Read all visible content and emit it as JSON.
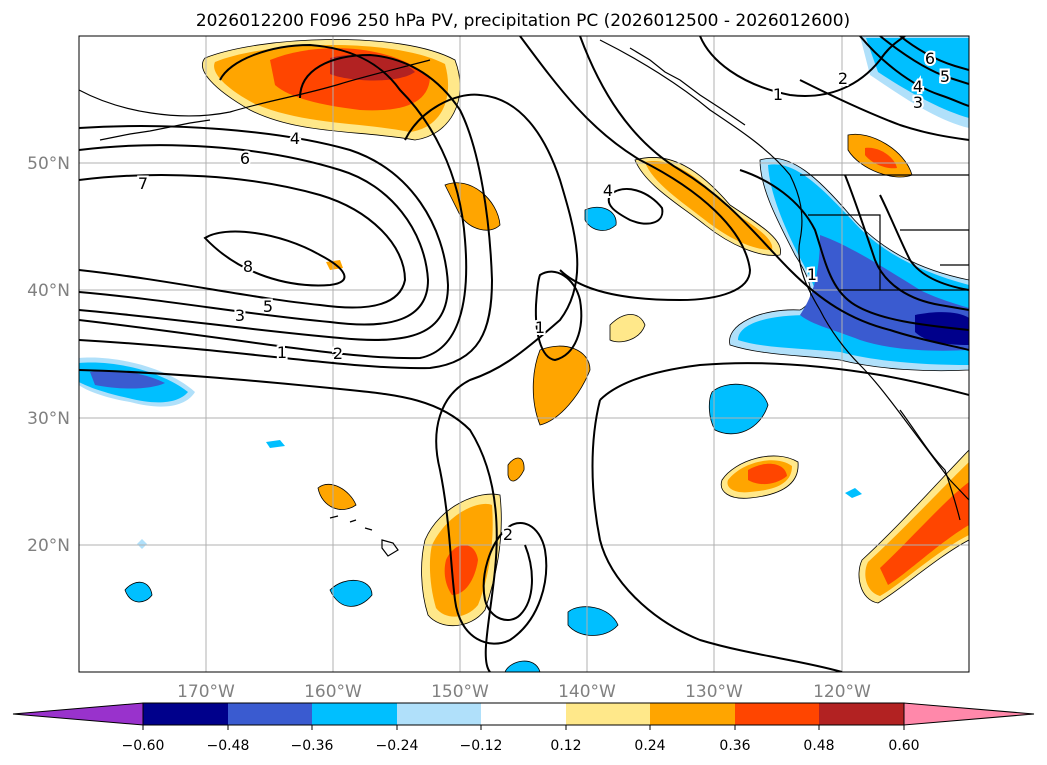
{
  "title": "2026012200 F096 250 hPa PV, precipitation PC (2026012500 - 2026012600)",
  "map": {
    "lon_labels": [
      "170°W",
      "160°W",
      "150°W",
      "140°W",
      "130°W",
      "120°W"
    ],
    "lat_labels": [
      "50°N",
      "40°N",
      "30°N",
      "20°N"
    ],
    "pv_contour_labels": [
      "8",
      "7",
      "6",
      "5",
      "4",
      "3",
      "2",
      "1",
      "1",
      "2",
      "1",
      "2",
      "3",
      "4",
      "5",
      "6",
      "1",
      "4"
    ]
  },
  "colorbar": {
    "ticks": [
      "−0.60",
      "−0.48",
      "−0.36",
      "−0.24",
      "−0.12",
      "0.12",
      "0.24",
      "0.36",
      "0.48",
      "0.60"
    ],
    "colors": [
      "#9932cc",
      "#00008b",
      "#3a5bd0",
      "#00bfff",
      "#b0e0fa",
      "#ffffff",
      "#ffe88a",
      "#ffa500",
      "#ff4500",
      "#b22222",
      "#ff88aa"
    ]
  }
}
